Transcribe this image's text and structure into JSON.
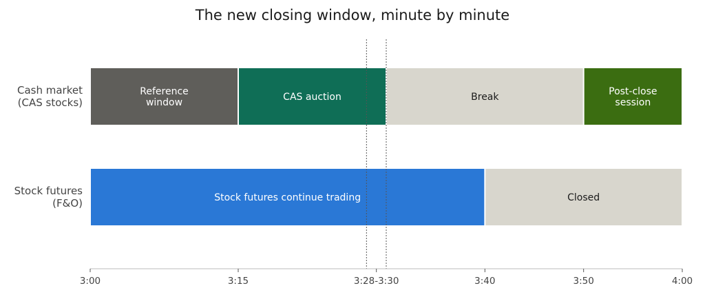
{
  "chart_data": {
    "type": "bar",
    "orientation": "horizontal-timeline",
    "title": "The new closing window, minute by minute",
    "xlabel": "",
    "ylabel": "",
    "x_unit": "minutes after 3:00",
    "xlim": [
      0,
      60
    ],
    "ticks": [
      {
        "value": 0,
        "label": "3:00"
      },
      {
        "value": 15,
        "label": "3:15"
      },
      {
        "value": 29,
        "label": "3:28-3:30"
      },
      {
        "value": 40,
        "label": "3:40"
      },
      {
        "value": 50,
        "label": "3:50"
      },
      {
        "value": 60,
        "label": "4:00"
      }
    ],
    "markers": [
      28,
      30
    ],
    "grid": false,
    "rows": [
      {
        "label_lines": [
          "Cash market",
          "(CAS stocks)"
        ],
        "segments": [
          {
            "start": 0,
            "end": 15,
            "label_lines": [
              "Reference",
              "window"
            ],
            "color": "#5f5e5a",
            "text_color": "#ffffff"
          },
          {
            "start": 15,
            "end": 30,
            "label_lines": [
              "CAS auction"
            ],
            "color": "#0f6e56",
            "text_color": "#ffffff"
          },
          {
            "start": 30,
            "end": 50,
            "label_lines": [
              "Break"
            ],
            "color": "#d8d6cd",
            "text_color": "#1a1a1a"
          },
          {
            "start": 50,
            "end": 60,
            "label_lines": [
              "Post-close",
              "session"
            ],
            "color": "#3b6d11",
            "text_color": "#ffffff"
          }
        ]
      },
      {
        "label_lines": [
          "Stock futures",
          "(F&O)"
        ],
        "segments": [
          {
            "start": 0,
            "end": 40,
            "label_lines": [
              "Stock futures continue trading"
            ],
            "color": "#2a78d6",
            "text_color": "#ffffff"
          },
          {
            "start": 40,
            "end": 60,
            "label_lines": [
              "Closed"
            ],
            "color": "#d8d6cd",
            "text_color": "#1a1a1a"
          }
        ]
      }
    ]
  }
}
